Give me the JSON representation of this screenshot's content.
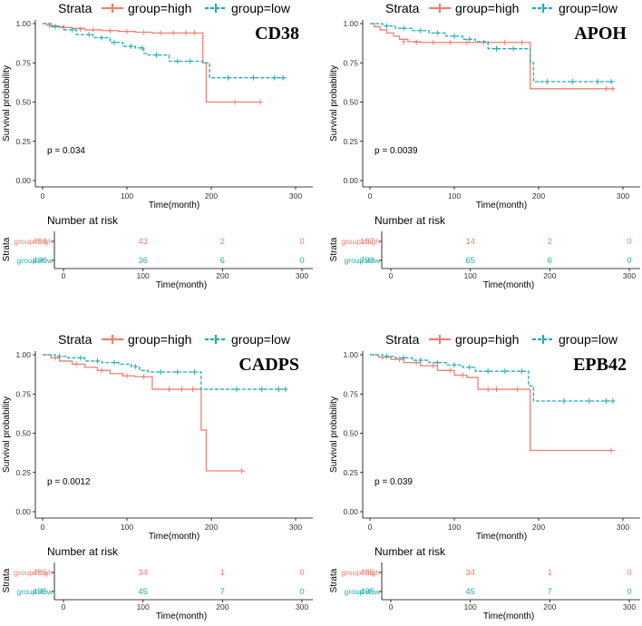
{
  "colors": {
    "high": "#F08070",
    "low": "#22AEB4",
    "axis": "#000000"
  },
  "chart_data": [
    {
      "type": "line",
      "title": "CD38",
      "legend": {
        "title": "Strata",
        "entries": [
          "group=high",
          "group=low"
        ],
        "placement": "top"
      },
      "xlabel": "Time(month)",
      "ylabel": "Survival probability",
      "xlim": [
        0,
        300
      ],
      "ylim": [
        0,
        1
      ],
      "xticks": [
        "0",
        "100",
        "200",
        "300"
      ],
      "yticks": [
        "0.00",
        "0.25",
        "0.50",
        "0.75",
        "1.00"
      ],
      "pvalue": "p = 0.034",
      "series": [
        {
          "name": "group=high",
          "style": "solid",
          "steps": [
            [
              0,
              1.0
            ],
            [
              5,
              0.99
            ],
            [
              12,
              0.985
            ],
            [
              20,
              0.975
            ],
            [
              35,
              0.97
            ],
            [
              50,
              0.96
            ],
            [
              70,
              0.955
            ],
            [
              90,
              0.95
            ],
            [
              110,
              0.945
            ],
            [
              130,
              0.94
            ],
            [
              190,
              0.94
            ],
            [
              190,
              0.75
            ],
            [
              194,
              0.75
            ],
            [
              194,
              0.5
            ],
            [
              260,
              0.5
            ]
          ],
          "censors": [
            [
              8,
              0.99
            ],
            [
              25,
              0.975
            ],
            [
              45,
              0.965
            ],
            [
              60,
              0.96
            ],
            [
              80,
              0.955
            ],
            [
              100,
              0.95
            ],
            [
              120,
              0.945
            ],
            [
              140,
              0.94
            ],
            [
              155,
              0.94
            ],
            [
              170,
              0.94
            ],
            [
              180,
              0.94
            ],
            [
              228,
              0.5
            ],
            [
              258,
              0.5
            ]
          ]
        },
        {
          "name": "group=low",
          "style": "dashed",
          "steps": [
            [
              0,
              1.0
            ],
            [
              10,
              0.98
            ],
            [
              25,
              0.96
            ],
            [
              40,
              0.93
            ],
            [
              60,
              0.91
            ],
            [
              80,
              0.88
            ],
            [
              95,
              0.855
            ],
            [
              110,
              0.845
            ],
            [
              120,
              0.81
            ],
            [
              125,
              0.8
            ],
            [
              150,
              0.76
            ],
            [
              190,
              0.76
            ],
            [
              190,
              0.75
            ],
            [
              198,
              0.75
            ],
            [
              198,
              0.655
            ],
            [
              290,
              0.655
            ]
          ],
          "censors": [
            [
              15,
              0.98
            ],
            [
              35,
              0.96
            ],
            [
              55,
              0.93
            ],
            [
              70,
              0.91
            ],
            [
              85,
              0.88
            ],
            [
              105,
              0.855
            ],
            [
              118,
              0.845
            ],
            [
              135,
              0.8
            ],
            [
              160,
              0.76
            ],
            [
              175,
              0.76
            ],
            [
              220,
              0.655
            ],
            [
              250,
              0.655
            ],
            [
              275,
              0.655
            ],
            [
              285,
              0.655
            ]
          ]
        }
      ],
      "risk_table": {
        "title": "Number at risk",
        "ylabel": "Strata",
        "xlabel": "Time(month)",
        "times": [
          "0",
          "100",
          "200",
          "300"
        ],
        "rows": [
          {
            "label": "group=high",
            "values": [
              "494",
              "43",
              "2",
              "0"
            ]
          },
          {
            "label": "group=low",
            "values": [
              "496",
              "36",
              "6",
              "0"
            ]
          }
        ]
      }
    },
    {
      "type": "line",
      "title": "APOH",
      "legend": {
        "title": "Strata",
        "entries": [
          "group=high",
          "group=low"
        ],
        "placement": "top"
      },
      "xlabel": "Time(month)",
      "ylabel": "Survival probability",
      "xlim": [
        0,
        300
      ],
      "ylim": [
        0,
        1
      ],
      "xticks": [
        "0",
        "100",
        "200",
        "300"
      ],
      "yticks": [
        "0.00",
        "0.25",
        "0.50",
        "0.75",
        "1.00"
      ],
      "pvalue": "p = 0.0039",
      "series": [
        {
          "name": "group=high",
          "style": "solid",
          "steps": [
            [
              0,
              1.0
            ],
            [
              5,
              0.98
            ],
            [
              12,
              0.96
            ],
            [
              20,
              0.94
            ],
            [
              28,
              0.92
            ],
            [
              35,
              0.9
            ],
            [
              45,
              0.885
            ],
            [
              60,
              0.88
            ],
            [
              190,
              0.88
            ],
            [
              190,
              0.585
            ],
            [
              290,
              0.585
            ]
          ],
          "censors": [
            [
              40,
              0.885
            ],
            [
              55,
              0.88
            ],
            [
              75,
              0.88
            ],
            [
              95,
              0.88
            ],
            [
              115,
              0.88
            ],
            [
              135,
              0.88
            ],
            [
              160,
              0.88
            ],
            [
              180,
              0.88
            ],
            [
              280,
              0.585
            ],
            [
              288,
              0.585
            ]
          ]
        },
        {
          "name": "group=low",
          "style": "dashed",
          "steps": [
            [
              0,
              1.0
            ],
            [
              15,
              0.985
            ],
            [
              30,
              0.97
            ],
            [
              50,
              0.955
            ],
            [
              70,
              0.94
            ],
            [
              90,
              0.92
            ],
            [
              110,
              0.9
            ],
            [
              125,
              0.885
            ],
            [
              140,
              0.84
            ],
            [
              190,
              0.84
            ],
            [
              190,
              0.75
            ],
            [
              194,
              0.75
            ],
            [
              194,
              0.63
            ],
            [
              290,
              0.63
            ]
          ],
          "censors": [
            [
              20,
              0.985
            ],
            [
              40,
              0.97
            ],
            [
              60,
              0.955
            ],
            [
              80,
              0.94
            ],
            [
              100,
              0.92
            ],
            [
              118,
              0.9
            ],
            [
              150,
              0.84
            ],
            [
              170,
              0.84
            ],
            [
              210,
              0.63
            ],
            [
              240,
              0.63
            ],
            [
              270,
              0.63
            ],
            [
              286,
              0.63
            ]
          ]
        }
      ],
      "risk_table": {
        "title": "Number at risk",
        "ylabel": "Strata",
        "xlabel": "Time(month)",
        "times": [
          "0",
          "100",
          "200",
          "300"
        ],
        "rows": [
          {
            "label": "group=high",
            "values": [
              "197",
              "14",
              "2",
              "0"
            ]
          },
          {
            "label": "group=low",
            "values": [
              "793",
              "65",
              "6",
              "0"
            ]
          }
        ]
      }
    },
    {
      "type": "line",
      "title": "CADPS",
      "legend": {
        "title": "Strata",
        "entries": [
          "group=high",
          "group=low"
        ],
        "placement": "top"
      },
      "xlabel": "Time(month)",
      "ylabel": "Survival probability",
      "xlim": [
        0,
        300
      ],
      "ylim": [
        0,
        1
      ],
      "xticks": [
        "0",
        "100",
        "200",
        "300"
      ],
      "yticks": [
        "0.00",
        "0.25",
        "0.50",
        "0.75",
        "1.00"
      ],
      "pvalue": "p = 0.0012",
      "series": [
        {
          "name": "group=high",
          "style": "solid",
          "steps": [
            [
              0,
              1.0
            ],
            [
              10,
              0.98
            ],
            [
              20,
              0.96
            ],
            [
              35,
              0.94
            ],
            [
              50,
              0.92
            ],
            [
              65,
              0.9
            ],
            [
              80,
              0.88
            ],
            [
              95,
              0.865
            ],
            [
              110,
              0.86
            ],
            [
              130,
              0.86
            ],
            [
              130,
              0.78
            ],
            [
              188,
              0.78
            ],
            [
              188,
              0.52
            ],
            [
              194,
              0.52
            ],
            [
              194,
              0.26
            ],
            [
              240,
              0.26
            ]
          ],
          "censors": [
            [
              15,
              0.98
            ],
            [
              40,
              0.94
            ],
            [
              70,
              0.9
            ],
            [
              100,
              0.865
            ],
            [
              120,
              0.86
            ],
            [
              150,
              0.78
            ],
            [
              165,
              0.78
            ],
            [
              178,
              0.78
            ],
            [
              236,
              0.26
            ]
          ]
        },
        {
          "name": "group=low",
          "style": "dashed",
          "steps": [
            [
              0,
              1.0
            ],
            [
              15,
              0.99
            ],
            [
              30,
              0.98
            ],
            [
              50,
              0.96
            ],
            [
              70,
              0.95
            ],
            [
              90,
              0.94
            ],
            [
              105,
              0.925
            ],
            [
              115,
              0.9
            ],
            [
              125,
              0.89
            ],
            [
              188,
              0.89
            ],
            [
              188,
              0.78
            ],
            [
              290,
              0.78
            ]
          ],
          "censors": [
            [
              20,
              0.99
            ],
            [
              45,
              0.98
            ],
            [
              65,
              0.96
            ],
            [
              85,
              0.95
            ],
            [
              110,
              0.925
            ],
            [
              140,
              0.89
            ],
            [
              160,
              0.89
            ],
            [
              180,
              0.89
            ],
            [
              230,
              0.78
            ],
            [
              260,
              0.78
            ],
            [
              280,
              0.78
            ],
            [
              288,
              0.78
            ]
          ]
        }
      ],
      "risk_table": {
        "title": "Number at risk",
        "ylabel": "Strata",
        "xlabel": "Time(month)",
        "times": [
          "0",
          "100",
          "200",
          "300"
        ],
        "rows": [
          {
            "label": "group=high",
            "values": [
              "495",
              "34",
              "1",
              "0"
            ]
          },
          {
            "label": "group=low",
            "values": [
              "495",
              "45",
              "7",
              "0"
            ]
          }
        ]
      }
    },
    {
      "type": "line",
      "title": "EPB42",
      "legend": {
        "title": "Strata",
        "entries": [
          "group=high",
          "group=low"
        ],
        "placement": "top"
      },
      "xlabel": "Time(month)",
      "ylabel": "Survival probability",
      "xlim": [
        0,
        300
      ],
      "ylim": [
        0,
        1
      ],
      "xticks": [
        "0",
        "100",
        "200",
        "300"
      ],
      "yticks": [
        "0.00",
        "0.25",
        "0.50",
        "0.75",
        "1.00"
      ],
      "pvalue": "p = 0.039",
      "series": [
        {
          "name": "group=high",
          "style": "solid",
          "steps": [
            [
              0,
              1.0
            ],
            [
              10,
              0.985
            ],
            [
              25,
              0.97
            ],
            [
              40,
              0.95
            ],
            [
              60,
              0.93
            ],
            [
              80,
              0.9
            ],
            [
              100,
              0.87
            ],
            [
              115,
              0.855
            ],
            [
              128,
              0.855
            ],
            [
              128,
              0.78
            ],
            [
              190,
              0.78
            ],
            [
              190,
              0.39
            ],
            [
              290,
              0.39
            ]
          ],
          "censors": [
            [
              15,
              0.985
            ],
            [
              35,
              0.97
            ],
            [
              55,
              0.95
            ],
            [
              75,
              0.93
            ],
            [
              95,
              0.9
            ],
            [
              110,
              0.87
            ],
            [
              140,
              0.78
            ],
            [
              150,
              0.78
            ],
            [
              175,
              0.78
            ],
            [
              286,
              0.39
            ]
          ]
        },
        {
          "name": "group=low",
          "style": "dashed",
          "steps": [
            [
              0,
              1.0
            ],
            [
              15,
              0.99
            ],
            [
              30,
              0.98
            ],
            [
              50,
              0.965
            ],
            [
              70,
              0.95
            ],
            [
              90,
              0.935
            ],
            [
              110,
              0.92
            ],
            [
              125,
              0.895
            ],
            [
              188,
              0.895
            ],
            [
              188,
              0.8
            ],
            [
              194,
              0.8
            ],
            [
              194,
              0.705
            ],
            [
              290,
              0.705
            ]
          ],
          "censors": [
            [
              20,
              0.99
            ],
            [
              40,
              0.98
            ],
            [
              60,
              0.965
            ],
            [
              80,
              0.95
            ],
            [
              100,
              0.935
            ],
            [
              118,
              0.92
            ],
            [
              140,
              0.895
            ],
            [
              160,
              0.895
            ],
            [
              180,
              0.895
            ],
            [
              230,
              0.705
            ],
            [
              260,
              0.705
            ],
            [
              280,
              0.705
            ],
            [
              288,
              0.705
            ]
          ]
        }
      ],
      "risk_table": {
        "title": "Number at risk",
        "ylabel": "Strata",
        "xlabel": "Time(month)",
        "times": [
          "0",
          "100",
          "200",
          "300"
        ],
        "rows": [
          {
            "label": "group=high",
            "values": [
              "495",
              "34",
              "1",
              "0"
            ]
          },
          {
            "label": "group=low",
            "values": [
              "495",
              "45",
              "7",
              "0"
            ]
          }
        ]
      }
    }
  ]
}
